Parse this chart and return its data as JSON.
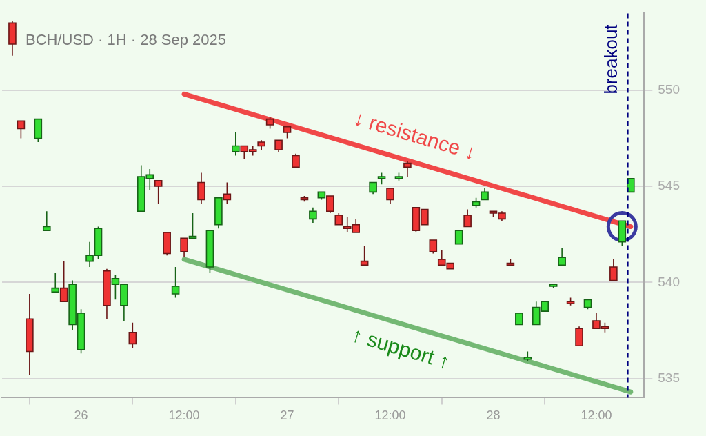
{
  "chart_data": {
    "type": "candlestick",
    "title": "BCH/USD · 1H · 28 Sep 2025",
    "xlim": [
      "2025-09-25T14:48",
      "2025-09-28T17:34"
    ],
    "xticks": [
      {
        "value": "2025-09-26",
        "label": "26"
      },
      {
        "value": "2025-09-26T12:00",
        "label": "12:00"
      },
      {
        "value": "2025-09-27",
        "label": "27"
      },
      {
        "value": "2025-09-27T12:00",
        "label": "12:00"
      },
      {
        "value": "2025-09-28",
        "label": "28"
      },
      {
        "value": "2025-09-28T12:00",
        "label": "12:00"
      }
    ],
    "ylim": [
      534,
      554
    ],
    "yticks": [
      535,
      540,
      545,
      550
    ],
    "grid": "y",
    "legend": false,
    "series": [
      {
        "color": "#33dd33",
        "x": [
          "2025-09-25T19:00",
          "2025-09-25T20:00",
          "2025-09-25T21:00",
          "2025-09-25T23:00",
          "2025-09-26T00:00",
          "2025-09-26T01:00",
          "2025-09-26T02:00",
          "2025-09-26T04:00",
          "2025-09-26T05:00",
          "2025-09-26T07:00",
          "2025-09-26T08:00",
          "2025-09-26T11:00",
          "2025-09-26T13:00",
          "2025-09-26T15:00",
          "2025-09-26T16:00",
          "2025-09-26T18:00",
          "2025-09-27T03:00",
          "2025-09-27T04:00",
          "2025-09-27T10:00",
          "2025-09-27T11:00",
          "2025-09-27T13:00",
          "2025-09-27T20:00",
          "2025-09-27T22:00",
          "2025-09-27T23:00",
          "2025-09-28T03:00",
          "2025-09-28T04:00",
          "2025-09-28T05:00",
          "2025-09-28T06:00",
          "2025-09-28T07:00",
          "2025-09-28T08:00",
          "2025-09-28T11:00",
          "2025-09-28T15:00",
          "2025-09-28T16:00"
        ],
        "ohlc": [
          [
            547.5,
            548.5,
            547.3,
            548.5
          ],
          [
            542.7,
            543.7,
            542.7,
            542.9
          ],
          [
            539.5,
            540.5,
            539.5,
            539.7
          ],
          [
            537.8,
            540.1,
            537.5,
            539.9
          ],
          [
            536.5,
            538.6,
            536.3,
            538.4
          ],
          [
            541.1,
            542.1,
            540.8,
            541.4
          ],
          [
            541.4,
            542.9,
            541.2,
            542.8
          ],
          [
            539.9,
            540.4,
            539.1,
            540.2
          ],
          [
            538.8,
            539.9,
            538.0,
            539.9
          ],
          [
            543.7,
            546.1,
            543.7,
            545.5
          ],
          [
            545.4,
            545.9,
            544.8,
            545.6
          ],
          [
            539.4,
            540.8,
            539.2,
            539.8
          ],
          [
            542.3,
            543.6,
            542.3,
            542.4
          ],
          [
            540.8,
            542.7,
            540.5,
            542.7
          ],
          [
            543.0,
            544.4,
            542.8,
            544.4
          ],
          [
            546.8,
            547.8,
            546.6,
            547.1
          ],
          [
            543.3,
            543.9,
            543.1,
            543.7
          ],
          [
            544.4,
            544.7,
            544.3,
            544.7
          ],
          [
            544.7,
            545.2,
            544.6,
            545.2
          ],
          [
            545.4,
            545.7,
            545.1,
            545.5
          ],
          [
            545.4,
            545.7,
            545.3,
            545.5
          ],
          [
            542.0,
            542.7,
            542.0,
            542.7
          ],
          [
            544.0,
            544.4,
            543.9,
            544.2
          ],
          [
            544.3,
            544.9,
            544.3,
            544.7
          ],
          [
            537.8,
            538.4,
            537.8,
            538.4
          ],
          [
            536.0,
            536.4,
            535.9,
            536.1
          ],
          [
            537.8,
            539.0,
            537.8,
            538.7
          ],
          [
            538.5,
            539.0,
            538.5,
            539.0
          ],
          [
            539.8,
            539.9,
            539.7,
            539.9
          ],
          [
            540.9,
            541.8,
            540.9,
            541.3
          ],
          [
            538.7,
            539.1,
            538.6,
            539.1
          ],
          [
            542.1,
            543.2,
            541.9,
            543.2
          ],
          [
            544.7,
            545.4,
            544.7,
            545.4
          ]
        ]
      },
      {
        "color": "#ee3333",
        "x": [
          "2025-09-25T16:00",
          "2025-09-25T17:00",
          "2025-09-25T18:00",
          "2025-09-25T22:00",
          "2025-09-26T03:00",
          "2025-09-26T06:00",
          "2025-09-26T09:00",
          "2025-09-26T10:00",
          "2025-09-26T12:00",
          "2025-09-26T14:00",
          "2025-09-26T17:00",
          "2025-09-26T19:00",
          "2025-09-26T20:00",
          "2025-09-26T21:00",
          "2025-09-26T22:00",
          "2025-09-26T23:00",
          "2025-09-27T00:00",
          "2025-09-27T01:00",
          "2025-09-27T02:00",
          "2025-09-27T05:00",
          "2025-09-27T06:00",
          "2025-09-27T07:00",
          "2025-09-27T08:00",
          "2025-09-27T09:00",
          "2025-09-27T12:00",
          "2025-09-27T14:00",
          "2025-09-27T15:00",
          "2025-09-27T16:00",
          "2025-09-27T17:00",
          "2025-09-27T18:00",
          "2025-09-27T19:00",
          "2025-09-27T21:00",
          "2025-09-28T00:00",
          "2025-09-28T01:00",
          "2025-09-28T02:00",
          "2025-09-28T09:00",
          "2025-09-28T10:00",
          "2025-09-28T12:00",
          "2025-09-28T13:00",
          "2025-09-28T14:00"
        ],
        "ohlc": [
          [
            553.5,
            553.6,
            551.8,
            552.4
          ],
          [
            548.4,
            548.4,
            547.5,
            548.0
          ],
          [
            538.1,
            539.4,
            535.2,
            536.4
          ],
          [
            539.7,
            541.1,
            539.0,
            539.0
          ],
          [
            540.6,
            540.7,
            538.1,
            538.8
          ],
          [
            537.4,
            537.9,
            536.6,
            536.8
          ],
          [
            545.3,
            545.3,
            544.1,
            545.0
          ],
          [
            542.6,
            542.6,
            541.4,
            541.5
          ],
          [
            542.3,
            542.3,
            541.3,
            541.6
          ],
          [
            545.2,
            545.7,
            544.1,
            544.3
          ],
          [
            544.6,
            545.2,
            544.1,
            544.3
          ],
          [
            547.1,
            547.1,
            546.4,
            546.8
          ],
          [
            546.9,
            547.1,
            546.6,
            546.8
          ],
          [
            547.3,
            547.4,
            546.9,
            547.1
          ],
          [
            548.5,
            548.6,
            548.0,
            548.2
          ],
          [
            547.4,
            547.4,
            546.8,
            546.9
          ],
          [
            548.1,
            548.1,
            547.5,
            547.8
          ],
          [
            546.6,
            546.7,
            546.0,
            546.0
          ],
          [
            544.4,
            544.5,
            544.2,
            544.3
          ],
          [
            544.5,
            544.5,
            543.6,
            543.7
          ],
          [
            543.5,
            543.6,
            543.0,
            543.0
          ],
          [
            542.9,
            543.4,
            542.6,
            542.8
          ],
          [
            543.0,
            543.3,
            542.6,
            542.6
          ],
          [
            541.1,
            541.9,
            540.9,
            540.9
          ],
          [
            544.9,
            544.9,
            544.1,
            544.3
          ],
          [
            546.2,
            546.3,
            545.5,
            546.0
          ],
          [
            543.9,
            543.9,
            542.6,
            542.7
          ],
          [
            543.8,
            543.8,
            543.0,
            543.0
          ],
          [
            542.2,
            542.2,
            541.5,
            541.6
          ],
          [
            541.2,
            541.7,
            540.9,
            540.9
          ],
          [
            541.0,
            541.0,
            540.7,
            540.7
          ],
          [
            543.5,
            543.8,
            542.9,
            542.9
          ],
          [
            543.7,
            543.7,
            543.4,
            543.6
          ],
          [
            543.6,
            543.7,
            543.2,
            543.3
          ],
          [
            541.0,
            541.2,
            540.9,
            540.9
          ],
          [
            539.0,
            539.2,
            538.8,
            538.9
          ],
          [
            537.6,
            537.7,
            536.7,
            536.7
          ],
          [
            538.0,
            538.4,
            537.6,
            537.6
          ],
          [
            537.7,
            537.9,
            537.4,
            537.6
          ],
          [
            540.8,
            541.2,
            540.1,
            540.1
          ]
        ]
      },
      {
        "type": "line",
        "color": "#f04848",
        "x": [
          "2025-09-26T12:00",
          "2025-09-28T16:00"
        ],
        "values": [
          549.8,
          542.9
        ]
      },
      {
        "type": "line",
        "color": "#74b874",
        "x": [
          "2025-09-26T12:00",
          "2025-09-28T16:00"
        ],
        "values": [
          541.2,
          534.3
        ]
      },
      {
        "type": "scatter",
        "color": "#3a3aa0",
        "marker": "circle",
        "x": [
          "2025-09-28T15:00"
        ],
        "values": [
          542.9
        ]
      }
    ],
    "ref_lines": [
      {
        "axis": "x",
        "value": "2025-09-28T15:40",
        "label": "breakout",
        "color": "#000080",
        "line_style": "dashed"
      }
    ],
    "annotations": [
      "↓ resistance ↓",
      "↑ support ↑"
    ]
  }
}
